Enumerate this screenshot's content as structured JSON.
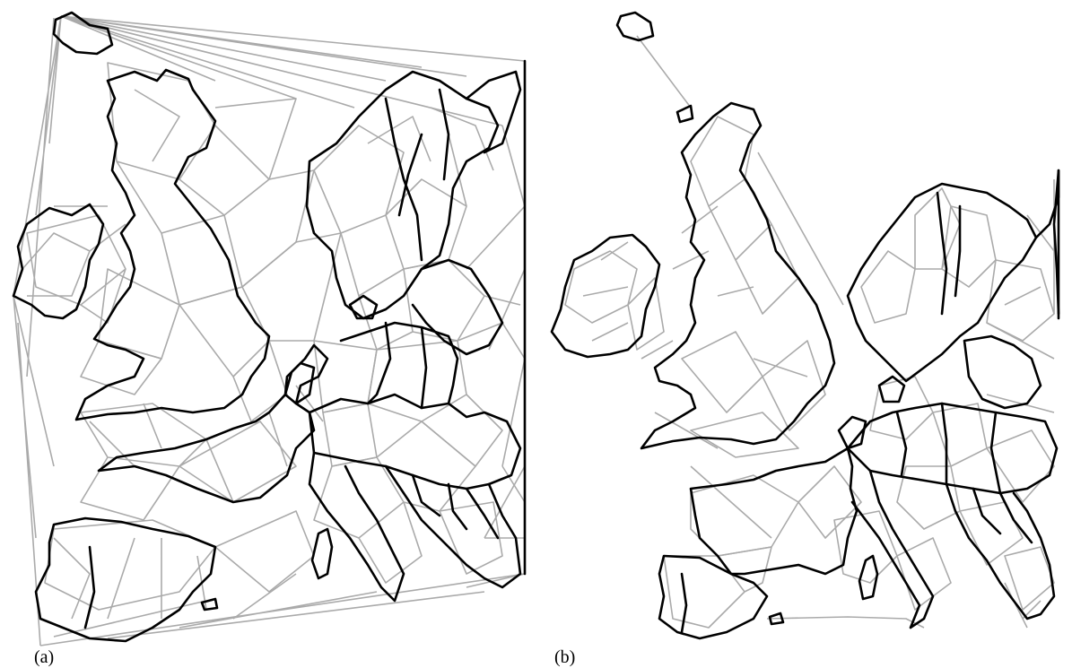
{
  "figure": {
    "panels": [
      {
        "id": "a",
        "caption": "(a)",
        "description_colors": {
          "triangulation": "#aaaaaa",
          "borders": "#000000"
        }
      },
      {
        "id": "b",
        "caption": "(b)",
        "description_colors": {
          "triangulation": "#aaaaaa",
          "borders": "#000000"
        }
      }
    ]
  }
}
